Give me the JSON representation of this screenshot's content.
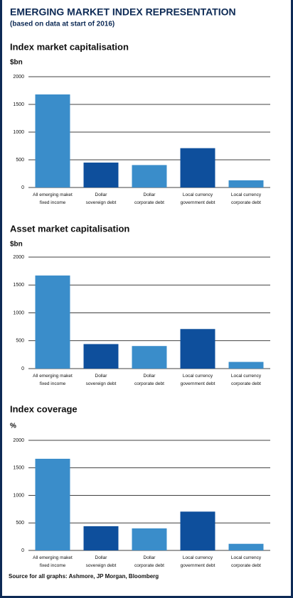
{
  "title": "EMERGING MARKET INDEX REPRESENTATION",
  "subtitle": "(based on data at start of 2016)",
  "source": "Source for all graphs: Ashmore, JP Morgan, Bloomberg",
  "chart_data": [
    {
      "type": "bar",
      "title": "Index market capitalisation",
      "y_label": "$bn",
      "categories": [
        "All emerging maket\nfixed income",
        "Dollar\nsovereign debt",
        "Dollar\ncorporate debt",
        "Local currency\ngovernment debt",
        "Local currency\ncorporate debt"
      ],
      "values": [
        1680,
        450,
        405,
        710,
        130
      ],
      "colors": [
        "#3a8dca",
        "#0e4f9c",
        "#3a8dca",
        "#0e4f9c",
        "#3a8dca"
      ],
      "ylim": [
        0,
        2000
      ],
      "yticks": [
        0,
        500,
        1000,
        1500,
        2000
      ],
      "grid": true
    },
    {
      "type": "bar",
      "title": "Asset market capitalisation",
      "y_label": "$bn",
      "categories": [
        "All emerging maket\nfixed income",
        "Dollar\nsovereign debt",
        "Dollar\ncorporate debt",
        "Local currency\ngovernment debt",
        "Local currency\ncorporate debt"
      ],
      "values": [
        1670,
        440,
        405,
        710,
        120
      ],
      "colors": [
        "#3a8dca",
        "#0e4f9c",
        "#3a8dca",
        "#0e4f9c",
        "#3a8dca"
      ],
      "ylim": [
        0,
        2000
      ],
      "yticks": [
        0,
        500,
        1000,
        1500,
        2000
      ],
      "grid": true
    },
    {
      "type": "bar",
      "title": "Index coverage",
      "y_label": "%",
      "categories": [
        "All emerging maket\nfixed income",
        "Dollar\nsovereign debt",
        "Dollar\ncorporate debt",
        "Local currency\ngovernment debt",
        "Local currency\ncorporate debt"
      ],
      "values": [
        1665,
        440,
        400,
        705,
        120
      ],
      "colors": [
        "#3a8dca",
        "#0e4f9c",
        "#3a8dca",
        "#0e4f9c",
        "#3a8dca"
      ],
      "ylim": [
        0,
        2000
      ],
      "yticks": [
        0,
        500,
        1000,
        1500,
        2000
      ],
      "grid": true
    }
  ]
}
